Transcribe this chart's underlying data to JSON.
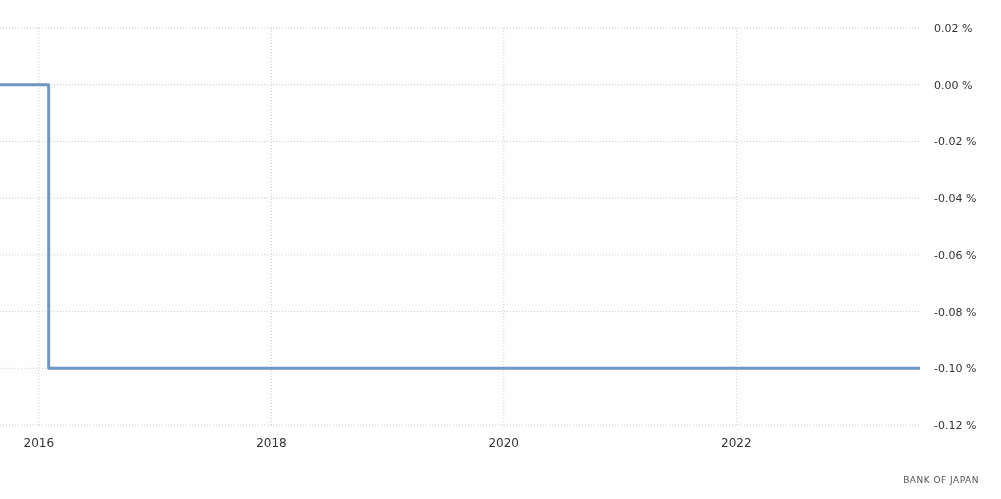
{
  "chart_data": {
    "type": "step",
    "x": [
      "2015-09",
      "2016-02",
      "2023-08"
    ],
    "series": [
      {
        "color": "#6f97c0",
        "values": [
          0,
          -0.1,
          -0.1
        ]
      }
    ],
    "xlim": [
      "2015-09",
      "2023-08"
    ],
    "xticks": [
      "2016",
      "2018",
      "2020",
      "2022"
    ],
    "ylim": [
      -0.12,
      0.02
    ],
    "yticks": [
      {
        "value": 0.02,
        "label": "0.02 %"
      },
      {
        "value": 0,
        "label": "0.00 %"
      },
      {
        "value": -0.02,
        "label": "-0.02 %"
      },
      {
        "value": -0.04,
        "label": "-0.04 %"
      },
      {
        "value": -0.06,
        "label": "-0.06 %"
      },
      {
        "value": -0.08,
        "label": "-0.08 %"
      },
      {
        "value": -0.1,
        "label": "-0.10 %"
      },
      {
        "value": -0.12,
        "label": "-0.12 %"
      }
    ],
    "grid": true,
    "line_style": "solid",
    "annotations": [
      "BANK OF JAPAN"
    ]
  }
}
